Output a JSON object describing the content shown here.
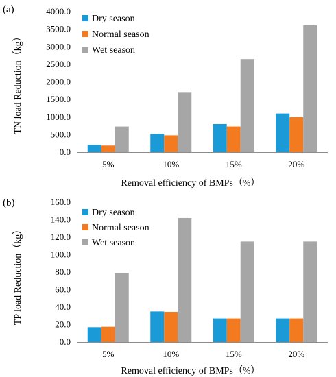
{
  "chart_data": [
    {
      "panel_label": "(a)",
      "type": "bar",
      "categories": [
        "5%",
        "10%",
        "15%",
        "20%"
      ],
      "series": [
        {
          "name": "Dry season",
          "color": "#1a9ad6",
          "values": [
            210,
            520,
            800,
            1100
          ]
        },
        {
          "name": "Normal season",
          "color": "#f47a20",
          "values": [
            190,
            480,
            730,
            1000
          ]
        },
        {
          "name": "Wet season",
          "color": "#a6a6a6",
          "values": [
            730,
            1710,
            2650,
            3610
          ]
        }
      ],
      "xlabel": "Removal efficiency of BMPs（%）",
      "ylabel": "TN load Reduction（kg）",
      "ylim": [
        0,
        4000
      ],
      "yticks": [
        "0.0",
        "500.0",
        "1000.0",
        "1500.0",
        "2000.0",
        "2500.0",
        "3000.0",
        "3500.0",
        "4000.0"
      ],
      "grid": false,
      "legend": "top-left"
    },
    {
      "panel_label": "(b)",
      "type": "bar",
      "categories": [
        "5%",
        "10%",
        "15%",
        "20%"
      ],
      "series": [
        {
          "name": "Dry season",
          "color": "#1a9ad6",
          "values": [
            17,
            35,
            27,
            27
          ]
        },
        {
          "name": "Normal season",
          "color": "#f47a20",
          "values": [
            17.5,
            34.5,
            27,
            27
          ]
        },
        {
          "name": "Wet season",
          "color": "#a6a6a6",
          "values": [
            79,
            142,
            115,
            115
          ]
        }
      ],
      "xlabel": "Removal efficiency of BMPs（%）",
      "ylabel": "TP load Reduction（kg）",
      "ylim": [
        0,
        160
      ],
      "yticks": [
        "0.0",
        "20.0",
        "40.0",
        "60.0",
        "80.0",
        "100.0",
        "120.0",
        "140.0",
        "160.0"
      ],
      "grid": false,
      "legend": "top-left"
    }
  ]
}
